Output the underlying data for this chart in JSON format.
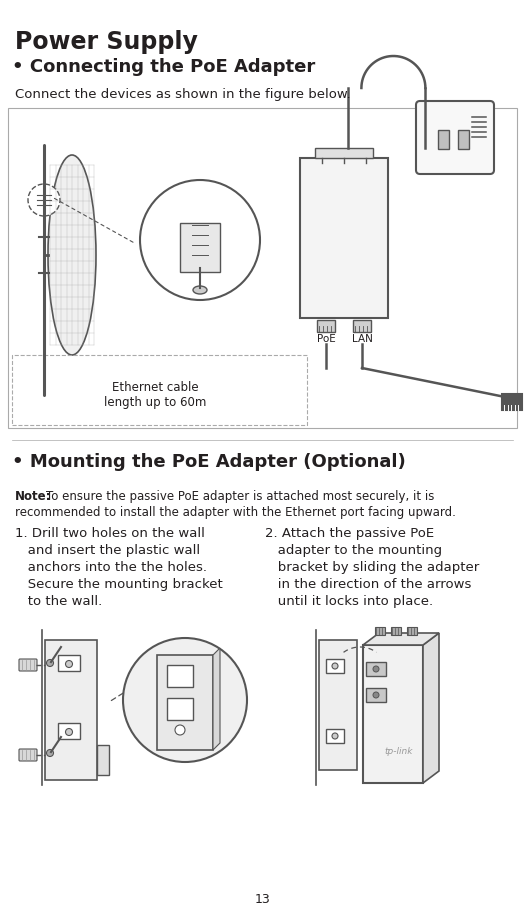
{
  "bg_color": "#ffffff",
  "title": "Power Supply",
  "section1_bullet": "• Connecting the PoE Adapter",
  "section1_sub": "Connect the devices as shown in the figure below.",
  "label_poe": "PoE",
  "label_lan": "LAN",
  "label_ethernet": "Ethernet cable\nlength up to 60m",
  "section2_bullet": "• Mounting the PoE Adapter (Optional)",
  "note_bold": "Note:",
  "note_text": " To ensure the passive PoE adapter is attached most securely, it is\nrecommended to install the adapter with the Ethernet port facing upward.",
  "step1_text": "1. Drill two holes on the wall\n    and insert the plastic wall\n    anchors into the the holes.\n    Secure the mounting bracket\n    to the wall.",
  "step2_text": "2. Attach the passive PoE\n    adapter to the mounting\n    bracket by sliding the adapter\n    in the direction of the arrows\n    until it locks into place.",
  "page_num": "13",
  "text_color": "#231f20",
  "mid_gray": "#999999",
  "dark_gray": "#555555",
  "line_gray": "#aaaaaa"
}
